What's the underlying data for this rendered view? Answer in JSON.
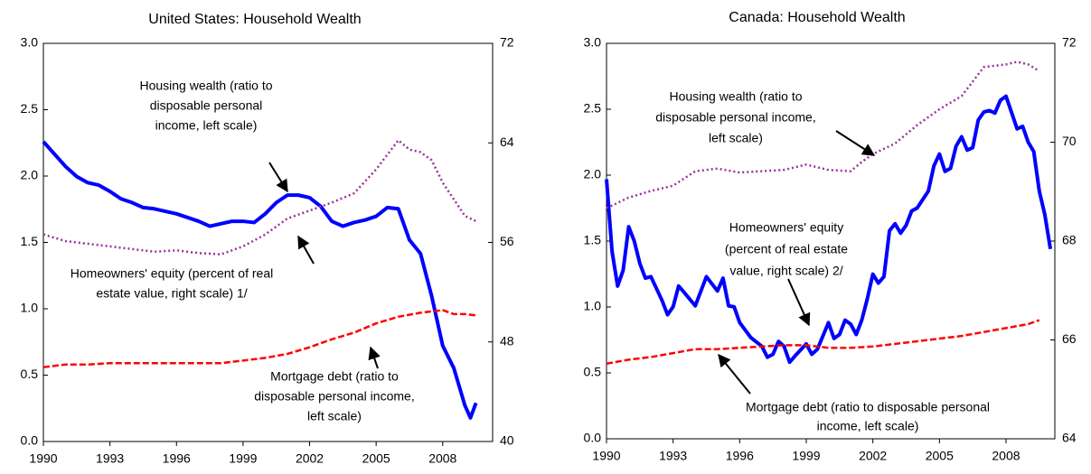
{
  "chart_data": [
    {
      "type": "line",
      "title": "United States: Household Wealth",
      "xlim": [
        1990,
        2010.25
      ],
      "xticks": [
        1990,
        1993,
        1996,
        1999,
        2002,
        2005,
        2008
      ],
      "ylim": [
        0,
        3
      ],
      "yticks": [
        {
          "value": 0,
          "label": "0.0"
        },
        0.5,
        {
          "value": 1,
          "label": "1.0"
        },
        1.5,
        {
          "value": 2,
          "label": "2.0"
        },
        2.5,
        {
          "value": 3,
          "label": "3.0"
        }
      ],
      "y2lim": [
        40,
        72
      ],
      "y2ticks": [
        40,
        48,
        56,
        64,
        72
      ],
      "annotations": [
        {
          "lines": [
            "Housing wealth (ratio to",
            "disposable personal",
            "income, left scale)"
          ]
        },
        {
          "lines": [
            "Homeowners' equity (percent of real",
            "estate value, right scale) 1/"
          ]
        },
        {
          "lines": [
            "Mortgage debt (ratio to",
            "disposable personal income,",
            "left scale)"
          ]
        }
      ],
      "series": [
        {
          "color": "#0000ff",
          "style": "solid",
          "axis": "y2",
          "x": [
            1990,
            1990.5,
            1991,
            1991.5,
            1992,
            1992.5,
            1993,
            1993.5,
            1994,
            1994.5,
            1995,
            1995.5,
            1996,
            1996.5,
            1997,
            1997.5,
            1998,
            1998.5,
            1999,
            1999.5,
            2000,
            2000.5,
            2001,
            2001.5,
            2002,
            2002.5,
            2003,
            2003.5,
            2004,
            2004.5,
            2005,
            2005.5,
            2006,
            2006.5,
            2007,
            2007.5,
            2008,
            2008.5,
            2009,
            2009.25,
            2009.5
          ],
          "values": [
            64.1,
            63.1,
            62.1,
            61.3,
            60.8,
            60.6,
            60.1,
            59.5,
            59.2,
            58.8,
            58.7,
            58.5,
            58.3,
            58.0,
            57.7,
            57.3,
            57.5,
            57.7,
            57.7,
            57.6,
            58.3,
            59.2,
            59.8,
            59.8,
            59.6,
            58.9,
            57.7,
            57.3,
            57.6,
            57.8,
            58.1,
            58.8,
            58.7,
            56.2,
            55.1,
            51.7,
            47.7,
            45.9,
            42.9,
            41.9,
            43.1
          ]
        },
        {
          "color": "#993399",
          "style": "dotted",
          "x": [
            1990,
            1991,
            1992,
            1993,
            1994,
            1995,
            1996,
            1997,
            1998,
            1999,
            2000,
            2001,
            2002,
            2003,
            2004,
            2005,
            2006,
            2006.5,
            2007,
            2007.5,
            2008,
            2009,
            2009.5
          ],
          "values": [
            1.56,
            1.51,
            1.49,
            1.47,
            1.45,
            1.43,
            1.44,
            1.42,
            1.41,
            1.47,
            1.56,
            1.68,
            1.74,
            1.8,
            1.87,
            2.05,
            2.27,
            2.2,
            2.18,
            2.12,
            1.95,
            1.7,
            1.66
          ]
        },
        {
          "color": "#ff0000",
          "style": "dashed",
          "x": [
            1990,
            1991,
            1992,
            1993,
            1994,
            1995,
            1996,
            1997,
            1998,
            1999,
            2000,
            2001,
            2002,
            2003,
            2004,
            2005,
            2006,
            2007,
            2008,
            2008.5,
            2009,
            2009.5
          ],
          "values": [
            0.56,
            0.58,
            0.58,
            0.59,
            0.59,
            0.59,
            0.59,
            0.59,
            0.59,
            0.61,
            0.63,
            0.66,
            0.71,
            0.77,
            0.82,
            0.89,
            0.94,
            0.97,
            0.99,
            0.96,
            0.96,
            0.95
          ]
        }
      ]
    },
    {
      "type": "line",
      "title": "Canada: Household Wealth",
      "xlim": [
        1990,
        2010.2
      ],
      "xticks": [
        1990,
        1993,
        1996,
        1999,
        2002,
        2005,
        2008
      ],
      "ylim": [
        0,
        3
      ],
      "yticks": [
        {
          "value": 0,
          "label": "0.0"
        },
        0.5,
        {
          "value": 1,
          "label": "1.0"
        },
        1.5,
        {
          "value": 2,
          "label": "2.0"
        },
        2.5,
        {
          "value": 3,
          "label": "3.0"
        }
      ],
      "y2lim": [
        64,
        72
      ],
      "y2ticks": [
        64,
        66,
        68,
        70,
        72
      ],
      "annotations": [
        {
          "lines": [
            "Housing wealth (ratio to",
            "disposable personal income,",
            "left scale)"
          ]
        },
        {
          "lines": [
            "Homeowners' equity",
            "(percent of real estate",
            "value, right scale) 2/"
          ]
        },
        {
          "lines": [
            "Mortgage debt (ratio to disposable personal",
            "income, left scale)"
          ]
        }
      ],
      "series": [
        {
          "color": "#0000ff",
          "style": "solid",
          "axis": "y2",
          "x": [
            1990,
            1990.25,
            1990.5,
            1990.75,
            1991,
            1991.25,
            1991.5,
            1991.75,
            1992,
            1992.5,
            1992.75,
            1993,
            1993.25,
            1993.5,
            1994,
            1994.5,
            1995,
            1995.25,
            1995.5,
            1995.75,
            1996,
            1996.5,
            1997,
            1997.25,
            1997.5,
            1997.75,
            1998,
            1998.25,
            1998.5,
            1999,
            1999.25,
            1999.5,
            2000,
            2000.25,
            2000.5,
            2000.75,
            2001,
            2001.25,
            2001.5,
            2001.75,
            2002,
            2002.25,
            2002.5,
            2002.75,
            2003,
            2003.25,
            2003.5,
            2003.75,
            2004,
            2004.5,
            2004.75,
            2005,
            2005.25,
            2005.5,
            2005.75,
            2006,
            2006.25,
            2006.5,
            2006.75,
            2007,
            2007.25,
            2007.5,
            2007.75,
            2008,
            2008.5,
            2008.75,
            2009,
            2009.25,
            2009.5,
            2009.75,
            2010
          ],
          "values": [
            69.25,
            67.79,
            67.09,
            67.41,
            68.29,
            68.0,
            67.55,
            67.25,
            67.28,
            66.8,
            66.51,
            66.67,
            67.09,
            66.96,
            66.69,
            67.28,
            66.99,
            67.25,
            66.69,
            66.67,
            66.35,
            66.05,
            65.87,
            65.65,
            65.71,
            65.97,
            65.87,
            65.55,
            65.68,
            65.92,
            65.71,
            65.81,
            66.35,
            66.03,
            66.11,
            66.4,
            66.32,
            66.11,
            66.4,
            66.83,
            67.33,
            67.15,
            67.28,
            68.21,
            68.35,
            68.16,
            68.32,
            68.61,
            68.67,
            69.01,
            69.52,
            69.76,
            69.41,
            69.47,
            69.92,
            70.11,
            69.84,
            69.89,
            70.45,
            70.61,
            70.64,
            70.59,
            70.85,
            70.93,
            70.27,
            70.32,
            70.0,
            69.81,
            69.01,
            68.53,
            67.84
          ]
        },
        {
          "color": "#993399",
          "style": "dotted",
          "x": [
            1990,
            1991,
            1992,
            1993,
            1994,
            1995,
            1996,
            1997,
            1998,
            1999,
            2000,
            2001,
            2001.5,
            2002,
            2003,
            2004,
            2005,
            2006,
            2007,
            2008,
            2008.5,
            2009,
            2009.5
          ],
          "values": [
            1.75,
            1.83,
            1.88,
            1.92,
            2.03,
            2.05,
            2.02,
            2.03,
            2.04,
            2.08,
            2.04,
            2.03,
            2.1,
            2.16,
            2.24,
            2.38,
            2.5,
            2.6,
            2.82,
            2.84,
            2.86,
            2.84,
            2.79
          ]
        },
        {
          "color": "#ff0000",
          "style": "dashed",
          "x": [
            1990,
            1991,
            1992,
            1993,
            1994,
            1995,
            1996,
            1997,
            1998,
            1999,
            2000,
            2001,
            2002,
            2003,
            2004,
            2005,
            2006,
            2007,
            2008,
            2009,
            2009.5
          ],
          "values": [
            0.57,
            0.6,
            0.62,
            0.65,
            0.68,
            0.68,
            0.69,
            0.7,
            0.71,
            0.71,
            0.69,
            0.69,
            0.7,
            0.72,
            0.74,
            0.76,
            0.78,
            0.81,
            0.84,
            0.87,
            0.9
          ]
        }
      ]
    }
  ]
}
